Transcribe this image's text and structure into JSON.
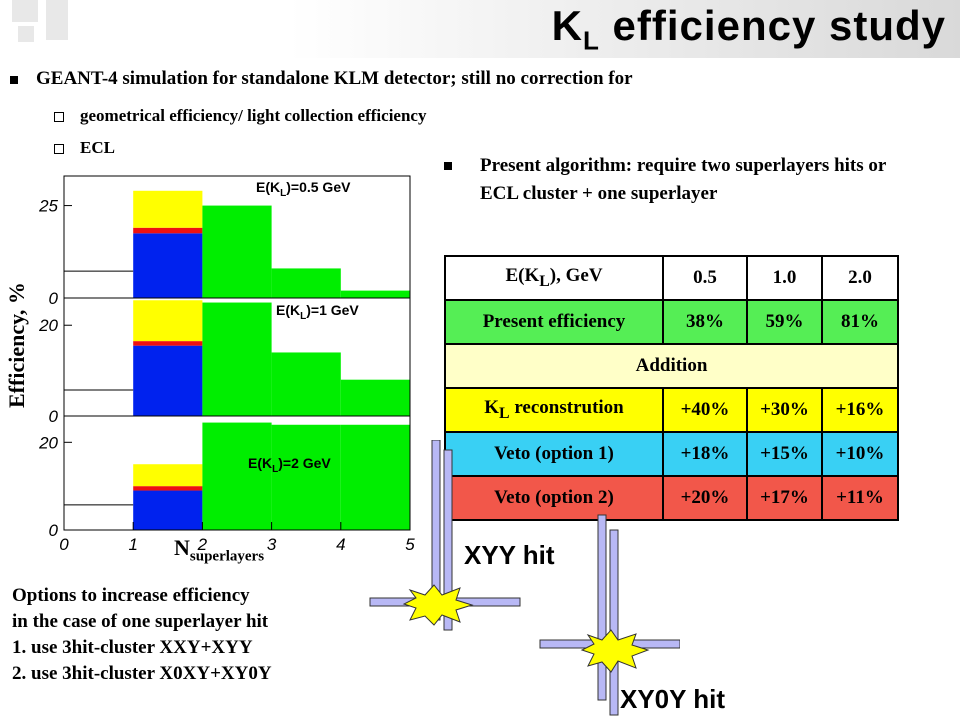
{
  "slide": {
    "title_main": "K",
    "title_sub": "L",
    "title_rest": " efficiency  study"
  },
  "bullets": {
    "geant": "GEANT-4 simulation for standalone KLM detector; still no correction for",
    "sub1": "geometrical efficiency/ light collection efficiency",
    "sub2": "ECL",
    "present_algorithm": "Present algorithm: require two superlayers hits or ECL cluster + one superlayer"
  },
  "table": {
    "header": [
      "E(K",
      "L",
      "), GeV",
      "0.5",
      "1.0",
      "2.0"
    ],
    "present": [
      "Present efficiency",
      "38%",
      "59%",
      "81%"
    ],
    "addition": "Addition",
    "kl_label_a": "K",
    "kl_label_sub": "L",
    "kl_label_b": " reconstrution",
    "kl_vals": [
      "+40%",
      "+30%",
      "+16%"
    ],
    "veto1": [
      "Veto (option 1)",
      "+18%",
      "+15%",
      "+10%"
    ],
    "veto2": [
      "Veto (option 2)",
      "+20%",
      "+17%",
      "+11%"
    ],
    "colors": {
      "present": "#55ee55",
      "addition": "#ffffc8",
      "kl": "#ffff00",
      "veto1": "#39d0f4",
      "veto2": "#f2574a"
    }
  },
  "options": {
    "line1": "Options to increase efficiency",
    "line2": "in the case of one superlayer hit",
    "line3": "1.  use 3hit-cluster XXY+XYY",
    "line4": "2.  use 3hit-cluster X0XY+XY0Y"
  },
  "hits": {
    "xyy": "XYY hit",
    "xy0y": "XY0Y hit"
  },
  "chart_data": {
    "type": "bar",
    "ylabel": "Efficiency, %",
    "xlabel_main": "N",
    "xlabel_sub": "superlayers",
    "x_ticks": [
      "0",
      "1",
      "2",
      "3",
      "4",
      "5"
    ],
    "xlim": [
      0,
      5
    ],
    "colors": {
      "yellow": "#ffff00",
      "red": "#ee1111",
      "blue": "#0022ee",
      "green": "#00ee00"
    },
    "panels": [
      {
        "label_a": "E(K",
        "label_sub": "L",
        "label_b": ")=0.5 GeV",
        "ylim": [
          0,
          33
        ],
        "y_ticks": [
          "0",
          "25"
        ],
        "bin1": {
          "blue": 17.5,
          "red": 1.5,
          "yellow": 10
        },
        "green": [
          {
            "x": [
              2,
              3
            ],
            "value": 25
          },
          {
            "x": [
              3,
              4
            ],
            "value": 8
          },
          {
            "x": [
              4,
              5
            ],
            "value": 2
          }
        ]
      },
      {
        "label_a": "E(K",
        "label_sub": "L",
        "label_b": ")=1 GeV",
        "ylim": [
          0,
          26
        ],
        "y_ticks": [
          "0",
          "20"
        ],
        "bin1": {
          "blue": 15.5,
          "red": 1,
          "yellow": 9
        },
        "green": [
          {
            "x": [
              2,
              3
            ],
            "value": 25
          },
          {
            "x": [
              3,
              4
            ],
            "value": 14
          },
          {
            "x": [
              4,
              5
            ],
            "value": 8
          }
        ]
      },
      {
        "label_a": "E(K",
        "label_sub": "L",
        "label_b": ")=2 GeV",
        "ylim": [
          0,
          26
        ],
        "y_ticks": [
          "0",
          "20"
        ],
        "bin1": {
          "blue": 9,
          "red": 1,
          "yellow": 5
        },
        "green": [
          {
            "x": [
              2,
              3
            ],
            "value": 24.5
          },
          {
            "x": [
              3,
              4
            ],
            "value": 24
          },
          {
            "x": [
              4,
              5
            ],
            "value": 24
          }
        ]
      }
    ]
  }
}
